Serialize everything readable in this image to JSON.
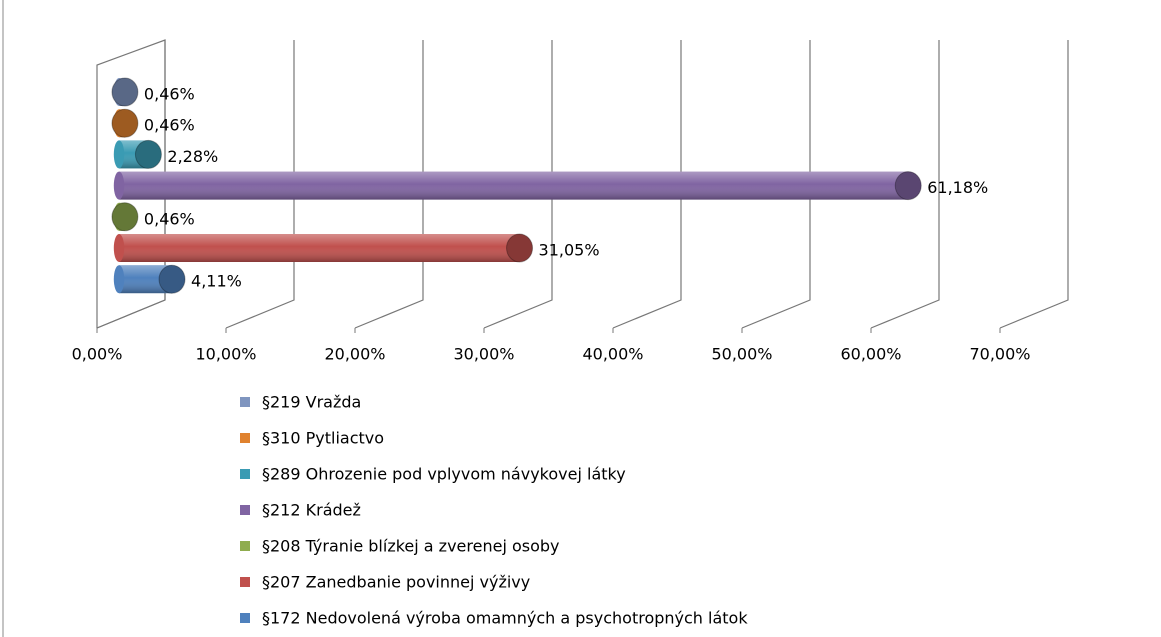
{
  "chart_data": {
    "type": "bar",
    "orientation": "horizontal",
    "xlim": [
      0,
      70
    ],
    "xticks": [
      {
        "value": 0,
        "label": "0,00%"
      },
      {
        "value": 10,
        "label": "10,00%"
      },
      {
        "value": 20,
        "label": "20,00%"
      },
      {
        "value": 30,
        "label": "30,00%"
      },
      {
        "value": 40,
        "label": "40,00%"
      },
      {
        "value": 50,
        "label": "50,00%"
      },
      {
        "value": 60,
        "label": "60,00%"
      },
      {
        "value": 70,
        "label": "70,00%"
      }
    ],
    "grid": true,
    "legend": "bottom",
    "series": [
      {
        "name": "§219 Vražda",
        "color": "#7f95bf",
        "values": [
          0.46
        ],
        "value_labels": [
          "0,46%"
        ]
      },
      {
        "name": "§310 Pytliactvo",
        "color": "#e0822f",
        "values": [
          0.46
        ],
        "value_labels": [
          "0,46%"
        ]
      },
      {
        "name": "§289 Ohrozenie pod vplyvom návykovej látky",
        "color": "#3a9bb3",
        "values": [
          2.28
        ],
        "value_labels": [
          "2,28%"
        ]
      },
      {
        "name": "§212 Krádež",
        "color": "#8064a2",
        "values": [
          61.18
        ],
        "value_labels": [
          "61,18%"
        ]
      },
      {
        "name": "§208 Týranie blízkej a zverenej osoby",
        "color": "#8fac4e",
        "values": [
          0.46
        ],
        "value_labels": [
          "0,46%"
        ]
      },
      {
        "name": "§207 Zanedbanie povinnej výživy",
        "color": "#c0504d",
        "values": [
          31.05
        ],
        "value_labels": [
          "31,05%"
        ]
      },
      {
        "name": "§172 Nedovolená výroba omamných a psychotropných látok",
        "color": "#4f81bd",
        "values": [
          4.11
        ],
        "value_labels": [
          "4,11%"
        ]
      }
    ]
  }
}
